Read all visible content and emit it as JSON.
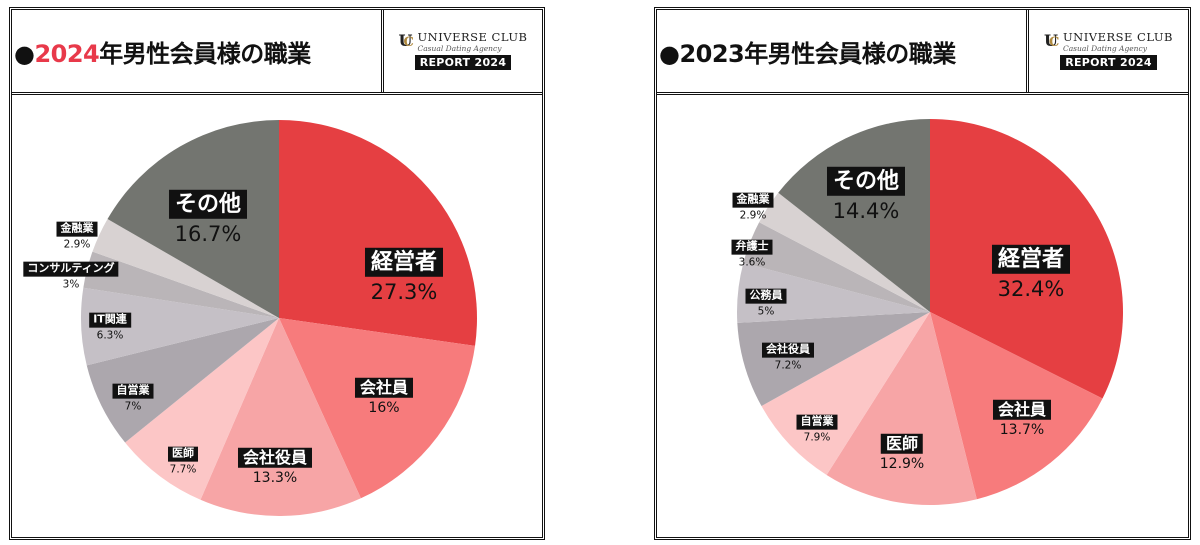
{
  "panels": [
    {
      "title_bullet": "●",
      "title_year": "2024",
      "title_rest": "年男性会員様の職業",
      "title_year_color": "#e8394a",
      "logo": {
        "name": "UNIVERSE CLUB",
        "tagline": "Casual Dating Agency",
        "badge": "REPORT 2024"
      }
    },
    {
      "title_bullet": "●",
      "title_year": "2023",
      "title_rest": "年男性会員様の職業",
      "title_year_color": "#111111",
      "logo": {
        "name": "UNIVERSE CLUB",
        "tagline": "Casual Dating Agency",
        "badge": "REPORT 2024"
      }
    }
  ],
  "chart_data": [
    {
      "type": "pie",
      "title": "2024年男性会員様の職業",
      "categories": [
        "経営者",
        "会社員",
        "会社役員",
        "医師",
        "自営業",
        "IT関連",
        "コンサルティング",
        "金融業",
        "その他"
      ],
      "values": [
        27.3,
        16,
        13.3,
        7.7,
        7,
        6.3,
        3,
        2.9,
        16.7
      ],
      "value_labels": [
        "27.3%",
        "16%",
        "13.3%",
        "7.7%",
        "7%",
        "6.3%",
        "3%",
        "2.9%",
        "16.7%"
      ],
      "colors": [
        "#e53f42",
        "#f77b7c",
        "#f7a5a6",
        "#fcc6c6",
        "#aca7ad",
        "#c5c0c6",
        "#bab5b8",
        "#d8d2d2",
        "#737570"
      ],
      "start_angle_deg": 0,
      "direction": "clockwise"
    },
    {
      "type": "pie",
      "title": "2023年男性会員様の職業",
      "categories": [
        "経営者",
        "会社員",
        "医師",
        "自営業",
        "会社役員",
        "公務員",
        "弁護士",
        "金融業",
        "その他"
      ],
      "values": [
        32.4,
        13.7,
        12.9,
        7.9,
        7.2,
        5,
        3.6,
        2.9,
        14.4
      ],
      "value_labels": [
        "32.4%",
        "13.7%",
        "12.9%",
        "7.9%",
        "7.2%",
        "5%",
        "3.6%",
        "2.9%",
        "14.4%"
      ],
      "colors": [
        "#e53f42",
        "#f77b7c",
        "#f7a5a6",
        "#fcc6c6",
        "#aca7ad",
        "#c5c0c6",
        "#bab5b8",
        "#d8d2d2",
        "#737570"
      ],
      "start_angle_deg": 0,
      "direction": "clockwise"
    }
  ]
}
